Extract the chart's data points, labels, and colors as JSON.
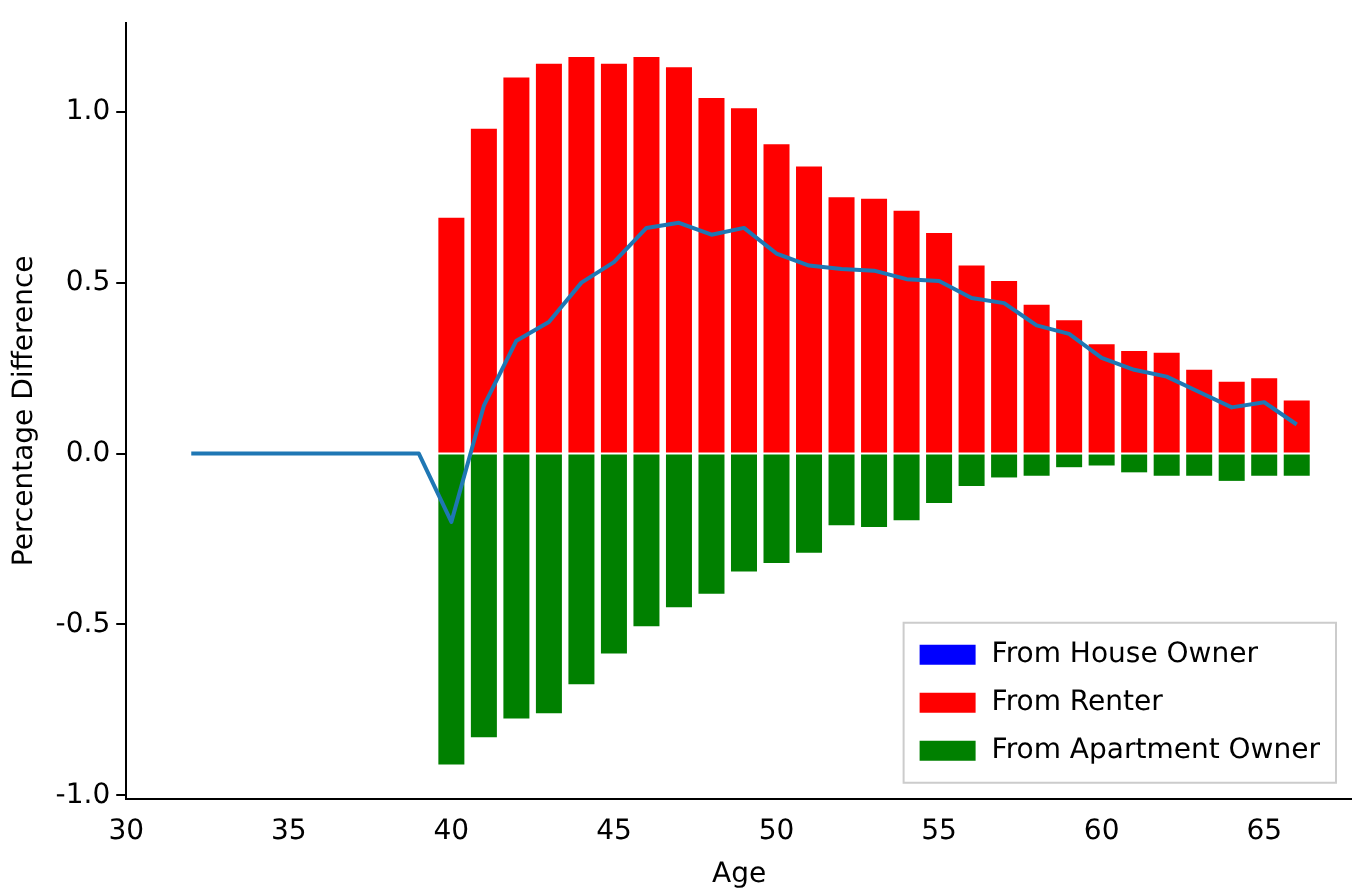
{
  "chart_data": {
    "type": "bar",
    "xlabel": "Age",
    "ylabel": "Percentage Difference",
    "x": [
      32,
      33,
      34,
      35,
      36,
      37,
      38,
      39,
      40,
      41,
      42,
      43,
      44,
      45,
      46,
      47,
      48,
      49,
      50,
      51,
      52,
      53,
      54,
      55,
      56,
      57,
      58,
      59,
      60,
      61,
      62,
      63,
      64,
      65,
      66
    ],
    "stacked": true,
    "series": [
      {
        "name": "From House Owner",
        "color": "#0000ff",
        "values": [
          0,
          0,
          0,
          0,
          0,
          0,
          0,
          0,
          0,
          0,
          0,
          0,
          0,
          0,
          0,
          0,
          0,
          0,
          0,
          0,
          0,
          0,
          0,
          0,
          0,
          0,
          0,
          0,
          0,
          0,
          0,
          0,
          0,
          0,
          0
        ]
      },
      {
        "name": "From Renter",
        "color": "#ff0000",
        "values": [
          0,
          0,
          0,
          0,
          0,
          0,
          0,
          0,
          0.69,
          0.95,
          1.1,
          1.14,
          1.16,
          1.14,
          1.16,
          1.13,
          1.04,
          1.01,
          0.905,
          0.84,
          0.75,
          0.745,
          0.71,
          0.645,
          0.55,
          0.505,
          0.435,
          0.39,
          0.32,
          0.3,
          0.295,
          0.245,
          0.21,
          0.22,
          0.155
        ]
      },
      {
        "name": "From Apartment Owner",
        "color": "#008000",
        "values": [
          0,
          0,
          0,
          0,
          0,
          0,
          0,
          0,
          -0.91,
          -0.83,
          -0.775,
          -0.76,
          -0.675,
          -0.585,
          -0.505,
          -0.45,
          -0.41,
          -0.345,
          -0.32,
          -0.29,
          -0.21,
          -0.215,
          -0.195,
          -0.145,
          -0.095,
          -0.07,
          -0.065,
          -0.04,
          -0.035,
          -0.055,
          -0.065,
          -0.065,
          -0.08,
          -0.065,
          -0.065
        ]
      },
      {
        "type": "line",
        "color": "#1f77b4",
        "marker": "none",
        "line_style": "solid",
        "values": [
          0,
          0,
          0,
          0,
          0,
          0,
          0,
          0,
          -0.2,
          0.14,
          0.33,
          0.385,
          0.5,
          0.56,
          0.66,
          0.675,
          0.64,
          0.66,
          0.585,
          0.55,
          0.54,
          0.535,
          0.51,
          0.505,
          0.455,
          0.44,
          0.375,
          0.35,
          0.28,
          0.245,
          0.225,
          0.18,
          0.135,
          0.15,
          0.085
        ]
      }
    ],
    "xlim": [
      30,
      67.7
    ],
    "xticks": [
      30,
      35,
      40,
      45,
      50,
      55,
      60,
      65
    ],
    "ylim": [
      -1.01,
      1.26
    ],
    "yticks": [
      {
        "value": -1,
        "label": "-1.0"
      },
      {
        "value": -0.5,
        "label": "-0.5"
      },
      {
        "value": 0,
        "label": "0.0"
      },
      {
        "value": 0.5,
        "label": "0.5"
      },
      {
        "value": 1,
        "label": "1.0"
      }
    ],
    "grid": false,
    "legend": "bottom right"
  }
}
